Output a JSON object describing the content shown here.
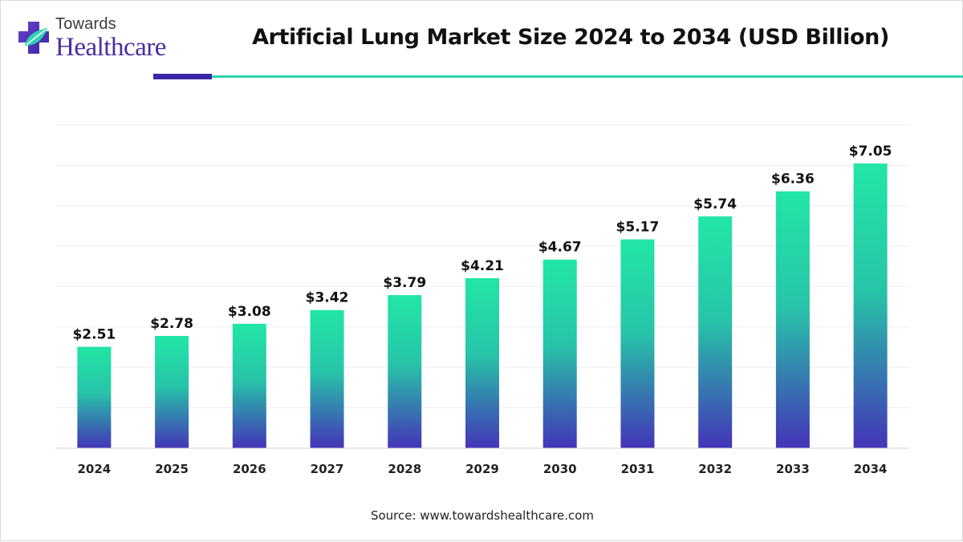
{
  "brand": {
    "name_top": "Towards",
    "name_bottom": "Healthcare",
    "logo_icon": "medical-cross-leaf-icon"
  },
  "colors": {
    "brand_purple": "#3a27a6",
    "accent_teal": "#2ed3b0",
    "bar_top": "#22e6a6",
    "bar_bottom": "#4434b8"
  },
  "source_text": "Source: www.towardshealthcare.com",
  "chart_data": {
    "type": "bar",
    "title": "Artificial Lung Market Size 2024 to 2034 (USD Billion)",
    "xlabel": "",
    "ylabel": "",
    "categories": [
      "2024",
      "2025",
      "2026",
      "2027",
      "2028",
      "2029",
      "2030",
      "2031",
      "2032",
      "2033",
      "2034"
    ],
    "values": [
      2.51,
      2.78,
      3.08,
      3.42,
      3.79,
      4.21,
      4.67,
      5.17,
      5.74,
      6.36,
      7.05
    ],
    "labels": [
      "$2.51",
      "$2.78",
      "$3.08",
      "$3.42",
      "$3.79",
      "$4.21",
      "$4.67",
      "$5.17",
      "$5.74",
      "$6.36",
      "$7.05"
    ],
    "ylim": [
      0,
      8
    ],
    "grid": true,
    "legend": "none"
  }
}
